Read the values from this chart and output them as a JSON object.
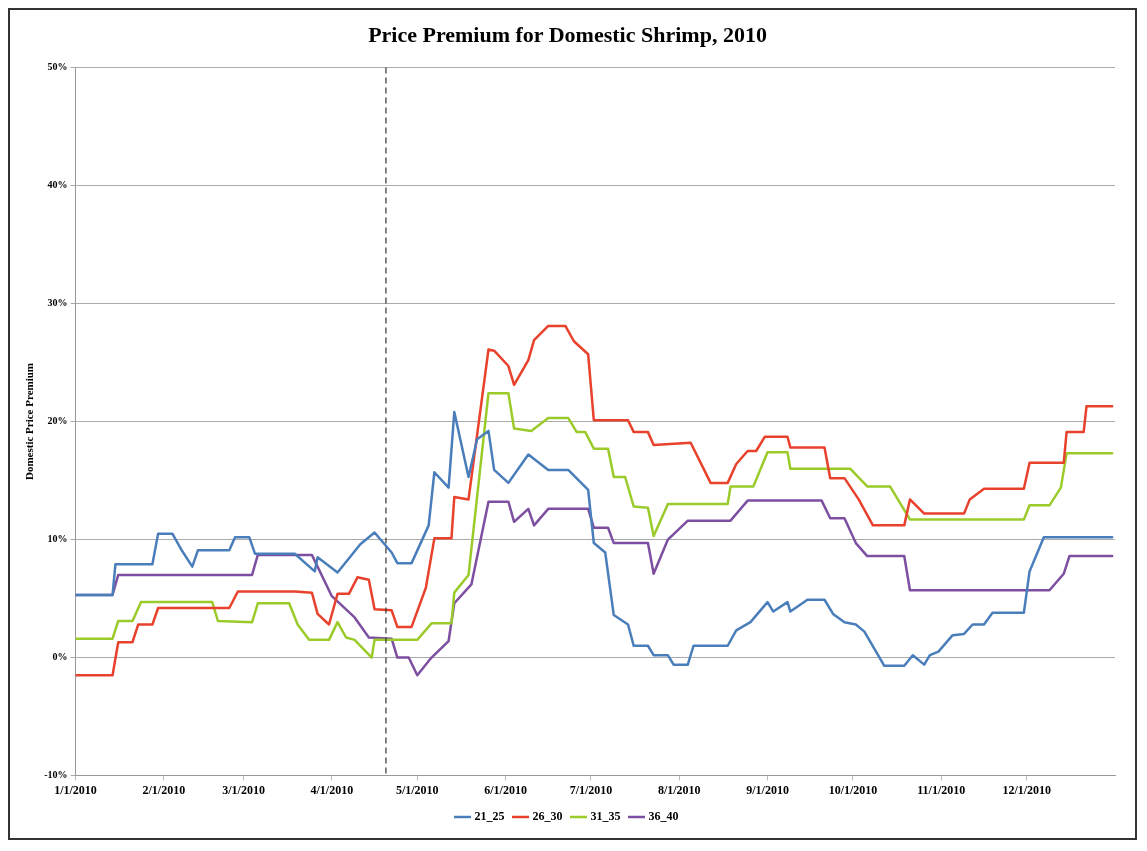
{
  "chart_data": {
    "type": "line",
    "title": "Price Premium for Domestic Shrimp, 2010",
    "ylabel": "Domestic Price Premium",
    "xlim": [
      "2010-01-01",
      "2011-01-01"
    ],
    "xticks": [
      {
        "value": "2010-01-01",
        "label": "1/1/2010"
      },
      {
        "value": "2010-02-01",
        "label": "2/1/2010"
      },
      {
        "value": "2010-03-01",
        "label": "3/1/2010"
      },
      {
        "value": "2010-04-01",
        "label": "4/1/2010"
      },
      {
        "value": "2010-05-01",
        "label": "5/1/2010"
      },
      {
        "value": "2010-06-01",
        "label": "6/1/2010"
      },
      {
        "value": "2010-07-01",
        "label": "7/1/2010"
      },
      {
        "value": "2010-08-01",
        "label": "8/1/2010"
      },
      {
        "value": "2010-09-01",
        "label": "9/1/2010"
      },
      {
        "value": "2010-10-01",
        "label": "10/1/2010"
      },
      {
        "value": "2010-11-01",
        "label": "11/1/2010"
      },
      {
        "value": "2010-12-01",
        "label": "12/1/2010"
      }
    ],
    "ylim": [
      -10,
      50
    ],
    "yticks": [
      {
        "value": -10,
        "label": "-10%"
      },
      {
        "value": 0,
        "label": "0%"
      },
      {
        "value": 10,
        "label": "10%"
      },
      {
        "value": 20,
        "label": "20%"
      },
      {
        "value": 30,
        "label": "30%"
      },
      {
        "value": 40,
        "label": "40%"
      },
      {
        "value": 50,
        "label": "50%"
      }
    ],
    "grid": "y",
    "legend": "bottom",
    "marker": "none",
    "line_style": "solid",
    "ref_lines": [
      {
        "axis": "x",
        "value": "2010-04-20",
        "color": "#333333",
        "line_style": "dashed"
      }
    ],
    "series": [
      {
        "name": "21_25",
        "color": "#4a7ebb",
        "x": [
          "2010-01-01",
          "2010-01-14",
          "2010-01-15",
          "2010-01-28",
          "2010-01-30",
          "2010-02-04",
          "2010-02-07",
          "2010-02-11",
          "2010-02-13",
          "2010-02-24",
          "2010-02-26",
          "2010-03-03",
          "2010-03-05",
          "2010-03-19",
          "2010-03-26",
          "2010-03-27",
          "2010-04-03",
          "2010-04-11",
          "2010-04-16",
          "2010-04-22",
          "2010-04-24",
          "2010-04-29",
          "2010-05-05",
          "2010-05-07",
          "2010-05-12",
          "2010-05-14",
          "2010-05-19",
          "2010-05-22",
          "2010-05-26",
          "2010-05-28",
          "2010-06-02",
          "2010-06-09",
          "2010-06-16",
          "2010-06-23",
          "2010-06-30",
          "2010-07-02",
          "2010-07-06",
          "2010-07-09",
          "2010-07-14",
          "2010-07-16",
          "2010-07-21",
          "2010-07-23",
          "2010-07-28",
          "2010-07-30",
          "2010-08-04",
          "2010-08-06",
          "2010-08-18",
          "2010-08-21",
          "2010-08-26",
          "2010-09-01",
          "2010-09-03",
          "2010-09-08",
          "2010-09-09",
          "2010-09-15",
          "2010-09-21",
          "2010-09-24",
          "2010-09-28",
          "2010-10-02",
          "2010-10-05",
          "2010-10-12",
          "2010-10-19",
          "2010-10-22",
          "2010-10-26",
          "2010-10-28",
          "2010-10-31",
          "2010-11-05",
          "2010-11-09",
          "2010-11-12",
          "2010-11-16",
          "2010-11-19",
          "2010-11-30",
          "2010-12-02",
          "2010-12-07",
          "2010-12-31"
        ],
        "values": [
          5.3,
          5.3,
          7.9,
          7.9,
          10.5,
          10.5,
          9.2,
          7.7,
          9.1,
          9.1,
          10.2,
          10.2,
          8.8,
          8.8,
          7.3,
          8.5,
          7.2,
          9.6,
          10.6,
          8.9,
          8.0,
          8.0,
          11.2,
          15.7,
          14.4,
          20.8,
          15.3,
          18.5,
          19.2,
          15.9,
          14.8,
          17.2,
          15.9,
          15.9,
          14.2,
          9.7,
          8.9,
          3.6,
          2.8,
          1.0,
          1.0,
          0.2,
          0.2,
          -0.6,
          -0.6,
          1.0,
          1.0,
          2.3,
          3.0,
          4.7,
          3.9,
          4.7,
          3.9,
          4.9,
          4.9,
          3.7,
          3.0,
          2.8,
          2.2,
          -0.7,
          -0.7,
          0.2,
          -0.6,
          0.2,
          0.5,
          1.9,
          2.0,
          2.8,
          2.8,
          3.8,
          3.8,
          7.3,
          10.2,
          10.2
        ]
      },
      {
        "name": "26_30",
        "color": "#e8412c",
        "x": [
          "2010-01-01",
          "2010-01-14",
          "2010-01-16",
          "2010-01-21",
          "2010-01-23",
          "2010-01-28",
          "2010-01-30",
          "2010-02-24",
          "2010-02-27",
          "2010-03-19",
          "2010-03-25",
          "2010-03-27",
          "2010-03-31",
          "2010-04-03",
          "2010-04-07",
          "2010-04-10",
          "2010-04-14",
          "2010-04-16",
          "2010-04-22",
          "2010-04-24",
          "2010-04-29",
          "2010-05-04",
          "2010-05-07",
          "2010-05-13",
          "2010-05-14",
          "2010-05-19",
          "2010-05-26",
          "2010-05-28",
          "2010-06-02",
          "2010-06-04",
          "2010-06-09",
          "2010-06-11",
          "2010-06-16",
          "2010-06-22",
          "2010-06-25",
          "2010-06-30",
          "2010-07-02",
          "2010-07-14",
          "2010-07-16",
          "2010-07-21",
          "2010-07-23",
          "2010-08-05",
          "2010-08-12",
          "2010-08-18",
          "2010-08-21",
          "2010-08-25",
          "2010-08-28",
          "2010-08-31",
          "2010-09-08",
          "2010-09-09",
          "2010-09-21",
          "2010-09-23",
          "2010-09-28",
          "2010-10-03",
          "2010-10-08",
          "2010-10-19",
          "2010-10-21",
          "2010-10-26",
          "2010-11-09",
          "2010-11-11",
          "2010-11-16",
          "2010-11-30",
          "2010-12-02",
          "2010-12-14",
          "2010-12-15",
          "2010-12-21",
          "2010-12-22",
          "2010-12-31"
        ],
        "values": [
          -1.5,
          -1.5,
          1.3,
          1.3,
          2.8,
          2.8,
          4.2,
          4.2,
          5.6,
          5.6,
          5.5,
          3.7,
          2.8,
          5.4,
          5.4,
          6.8,
          6.6,
          4.1,
          4.0,
          2.6,
          2.6,
          5.9,
          10.1,
          10.1,
          13.6,
          13.4,
          26.1,
          26.0,
          24.7,
          23.1,
          25.2,
          26.9,
          28.1,
          28.1,
          26.8,
          25.7,
          20.1,
          20.1,
          19.1,
          19.1,
          18.0,
          18.2,
          14.8,
          14.8,
          16.4,
          17.5,
          17.5,
          18.7,
          18.7,
          17.8,
          17.8,
          15.2,
          15.2,
          13.4,
          11.2,
          11.2,
          13.4,
          12.2,
          12.2,
          13.4,
          14.3,
          14.3,
          16.5,
          16.5,
          19.1,
          19.1,
          21.3,
          21.3
        ]
      },
      {
        "name": "31_35",
        "color": "#9bcb2a",
        "x": [
          "2010-01-01",
          "2010-01-14",
          "2010-01-16",
          "2010-01-21",
          "2010-01-24",
          "2010-02-18",
          "2010-02-20",
          "2010-03-04",
          "2010-03-06",
          "2010-03-17",
          "2010-03-20",
          "2010-03-24",
          "2010-03-31",
          "2010-04-03",
          "2010-04-06",
          "2010-04-09",
          "2010-04-15",
          "2010-04-16",
          "2010-04-29",
          "2010-05-01",
          "2010-05-06",
          "2010-05-13",
          "2010-05-14",
          "2010-05-19",
          "2010-05-26",
          "2010-06-02",
          "2010-06-04",
          "2010-06-10",
          "2010-06-16",
          "2010-06-23",
          "2010-06-26",
          "2010-06-29",
          "2010-07-02",
          "2010-07-07",
          "2010-07-09",
          "2010-07-13",
          "2010-07-16",
          "2010-07-21",
          "2010-07-23",
          "2010-07-28",
          "2010-08-18",
          "2010-08-19",
          "2010-08-27",
          "2010-09-01",
          "2010-09-08",
          "2010-09-09",
          "2010-09-30",
          "2010-10-06",
          "2010-10-14",
          "2010-10-21",
          "2010-11-30",
          "2010-12-02",
          "2010-12-09",
          "2010-12-13",
          "2010-12-15",
          "2010-12-31"
        ],
        "values": [
          1.6,
          1.6,
          3.1,
          3.1,
          4.7,
          4.7,
          3.1,
          3.0,
          4.6,
          4.6,
          2.8,
          1.5,
          1.5,
          3.0,
          1.7,
          1.5,
          0.0,
          1.5,
          1.5,
          1.5,
          2.9,
          2.9,
          5.5,
          7.0,
          22.4,
          22.4,
          19.4,
          19.2,
          20.3,
          20.3,
          19.1,
          19.1,
          17.7,
          17.7,
          15.3,
          15.3,
          12.8,
          12.7,
          10.3,
          13.0,
          13.0,
          14.5,
          14.5,
          17.4,
          17.4,
          16.0,
          16.0,
          14.5,
          14.5,
          11.7,
          11.7,
          12.9,
          12.9,
          14.4,
          17.3,
          17.3
        ]
      },
      {
        "name": "36_40",
        "color": "#7d4fa0",
        "x": [
          "2010-01-01",
          "2010-01-14",
          "2010-01-16",
          "2010-03-04",
          "2010-03-06",
          "2010-03-25",
          "2010-04-01",
          "2010-04-09",
          "2010-04-14",
          "2010-04-22",
          "2010-04-24",
          "2010-04-28",
          "2010-05-01",
          "2010-05-06",
          "2010-05-12",
          "2010-05-14",
          "2010-05-20",
          "2010-05-26",
          "2010-06-02",
          "2010-06-04",
          "2010-06-09",
          "2010-06-11",
          "2010-06-16",
          "2010-06-30",
          "2010-07-02",
          "2010-07-07",
          "2010-07-09",
          "2010-07-21",
          "2010-07-23",
          "2010-07-28",
          "2010-08-04",
          "2010-08-19",
          "2010-08-25",
          "2010-09-20",
          "2010-09-23",
          "2010-09-28",
          "2010-10-02",
          "2010-10-06",
          "2010-10-19",
          "2010-10-21",
          "2010-12-09",
          "2010-12-14",
          "2010-12-16",
          "2010-12-31"
        ],
        "values": [
          5.3,
          5.3,
          7.0,
          7.0,
          8.7,
          8.7,
          5.2,
          3.4,
          1.7,
          1.6,
          0.0,
          0.0,
          -1.5,
          0.0,
          1.4,
          4.6,
          6.2,
          13.2,
          13.2,
          11.5,
          12.6,
          11.2,
          12.6,
          12.6,
          11.0,
          11.0,
          9.7,
          9.7,
          7.1,
          10.0,
          11.6,
          11.6,
          13.3,
          13.3,
          11.8,
          11.8,
          9.7,
          8.6,
          8.6,
          5.7,
          5.7,
          7.1,
          8.6,
          8.6
        ]
      }
    ]
  }
}
